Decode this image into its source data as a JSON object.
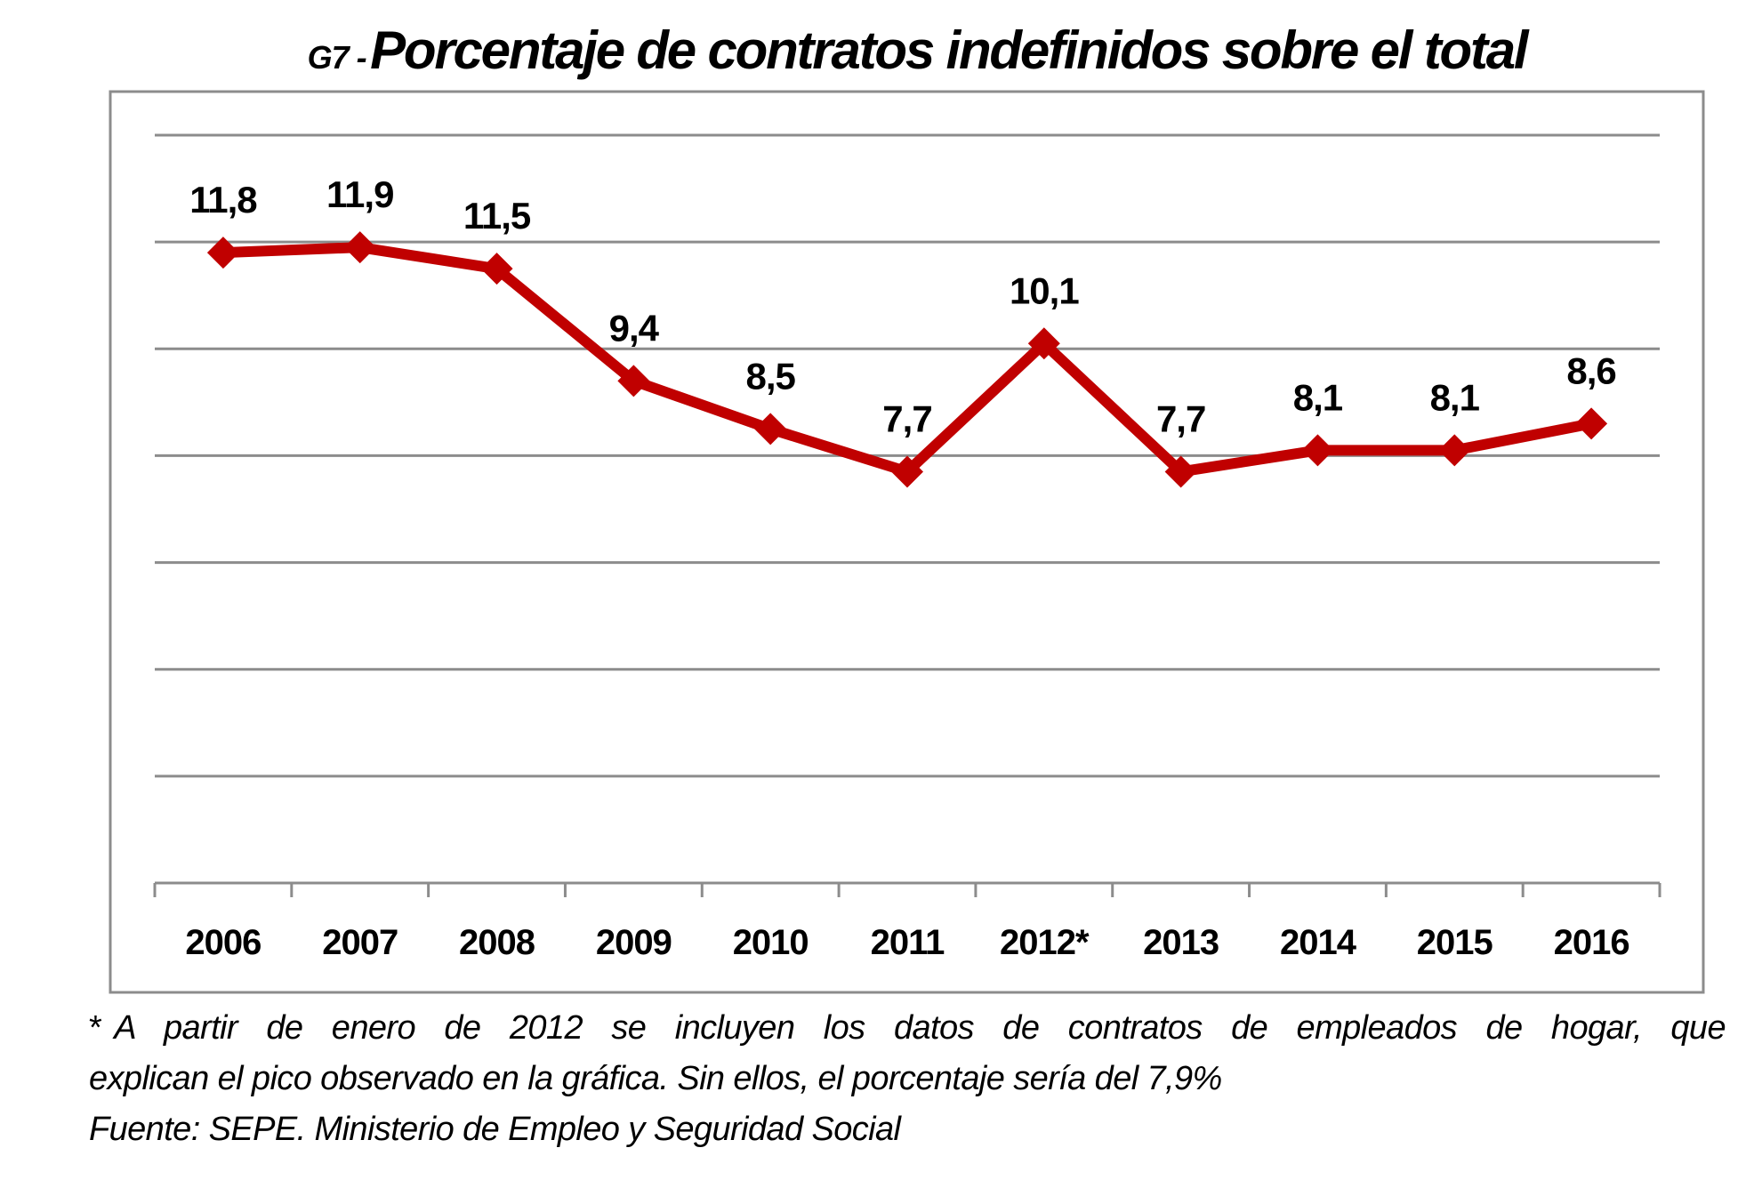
{
  "title": {
    "prefix": "G7 -",
    "main": "Porcentaje de contratos indefinidos sobre el total"
  },
  "colors": {
    "series": "#C00000",
    "gridline": "#8C8C8C",
    "frame": "#8C8C8C",
    "text": "#000000"
  },
  "chart_data": {
    "type": "line",
    "title": "G7 - Porcentaje de contratos indefinidos sobre el total",
    "xlabel": "",
    "ylabel": "",
    "categories": [
      "2006",
      "2007",
      "2008",
      "2009",
      "2010",
      "2011",
      "2012*",
      "2013",
      "2014",
      "2015",
      "2016"
    ],
    "series": [
      {
        "name": "Porcentaje de contratos indefinidos",
        "values": [
          11.8,
          11.9,
          11.5,
          9.4,
          8.5,
          7.7,
          10.1,
          7.7,
          8.1,
          8.1,
          8.6
        ],
        "data_labels": [
          "11,8",
          "11,9",
          "11,5",
          "9,4",
          "8,5",
          "7,7",
          "10,1",
          "7,7",
          "8,1",
          "8,1",
          "8,6"
        ],
        "marker": "diamond"
      }
    ],
    "ylim": [
      0,
      14
    ],
    "ytick_step": 2,
    "y_axis_labels_visible": false,
    "grid": true,
    "legend": "none"
  },
  "footnote": {
    "star": "*",
    "line1": "A partir de enero de 2012 se incluyen los datos de contratos de empleados de hogar, que",
    "line2": "explican el pico observado en la gráfica. Sin ellos, el porcentaje sería del 7,9%",
    "source": "Fuente: SEPE. Ministerio de Empleo y Seguridad Social"
  }
}
